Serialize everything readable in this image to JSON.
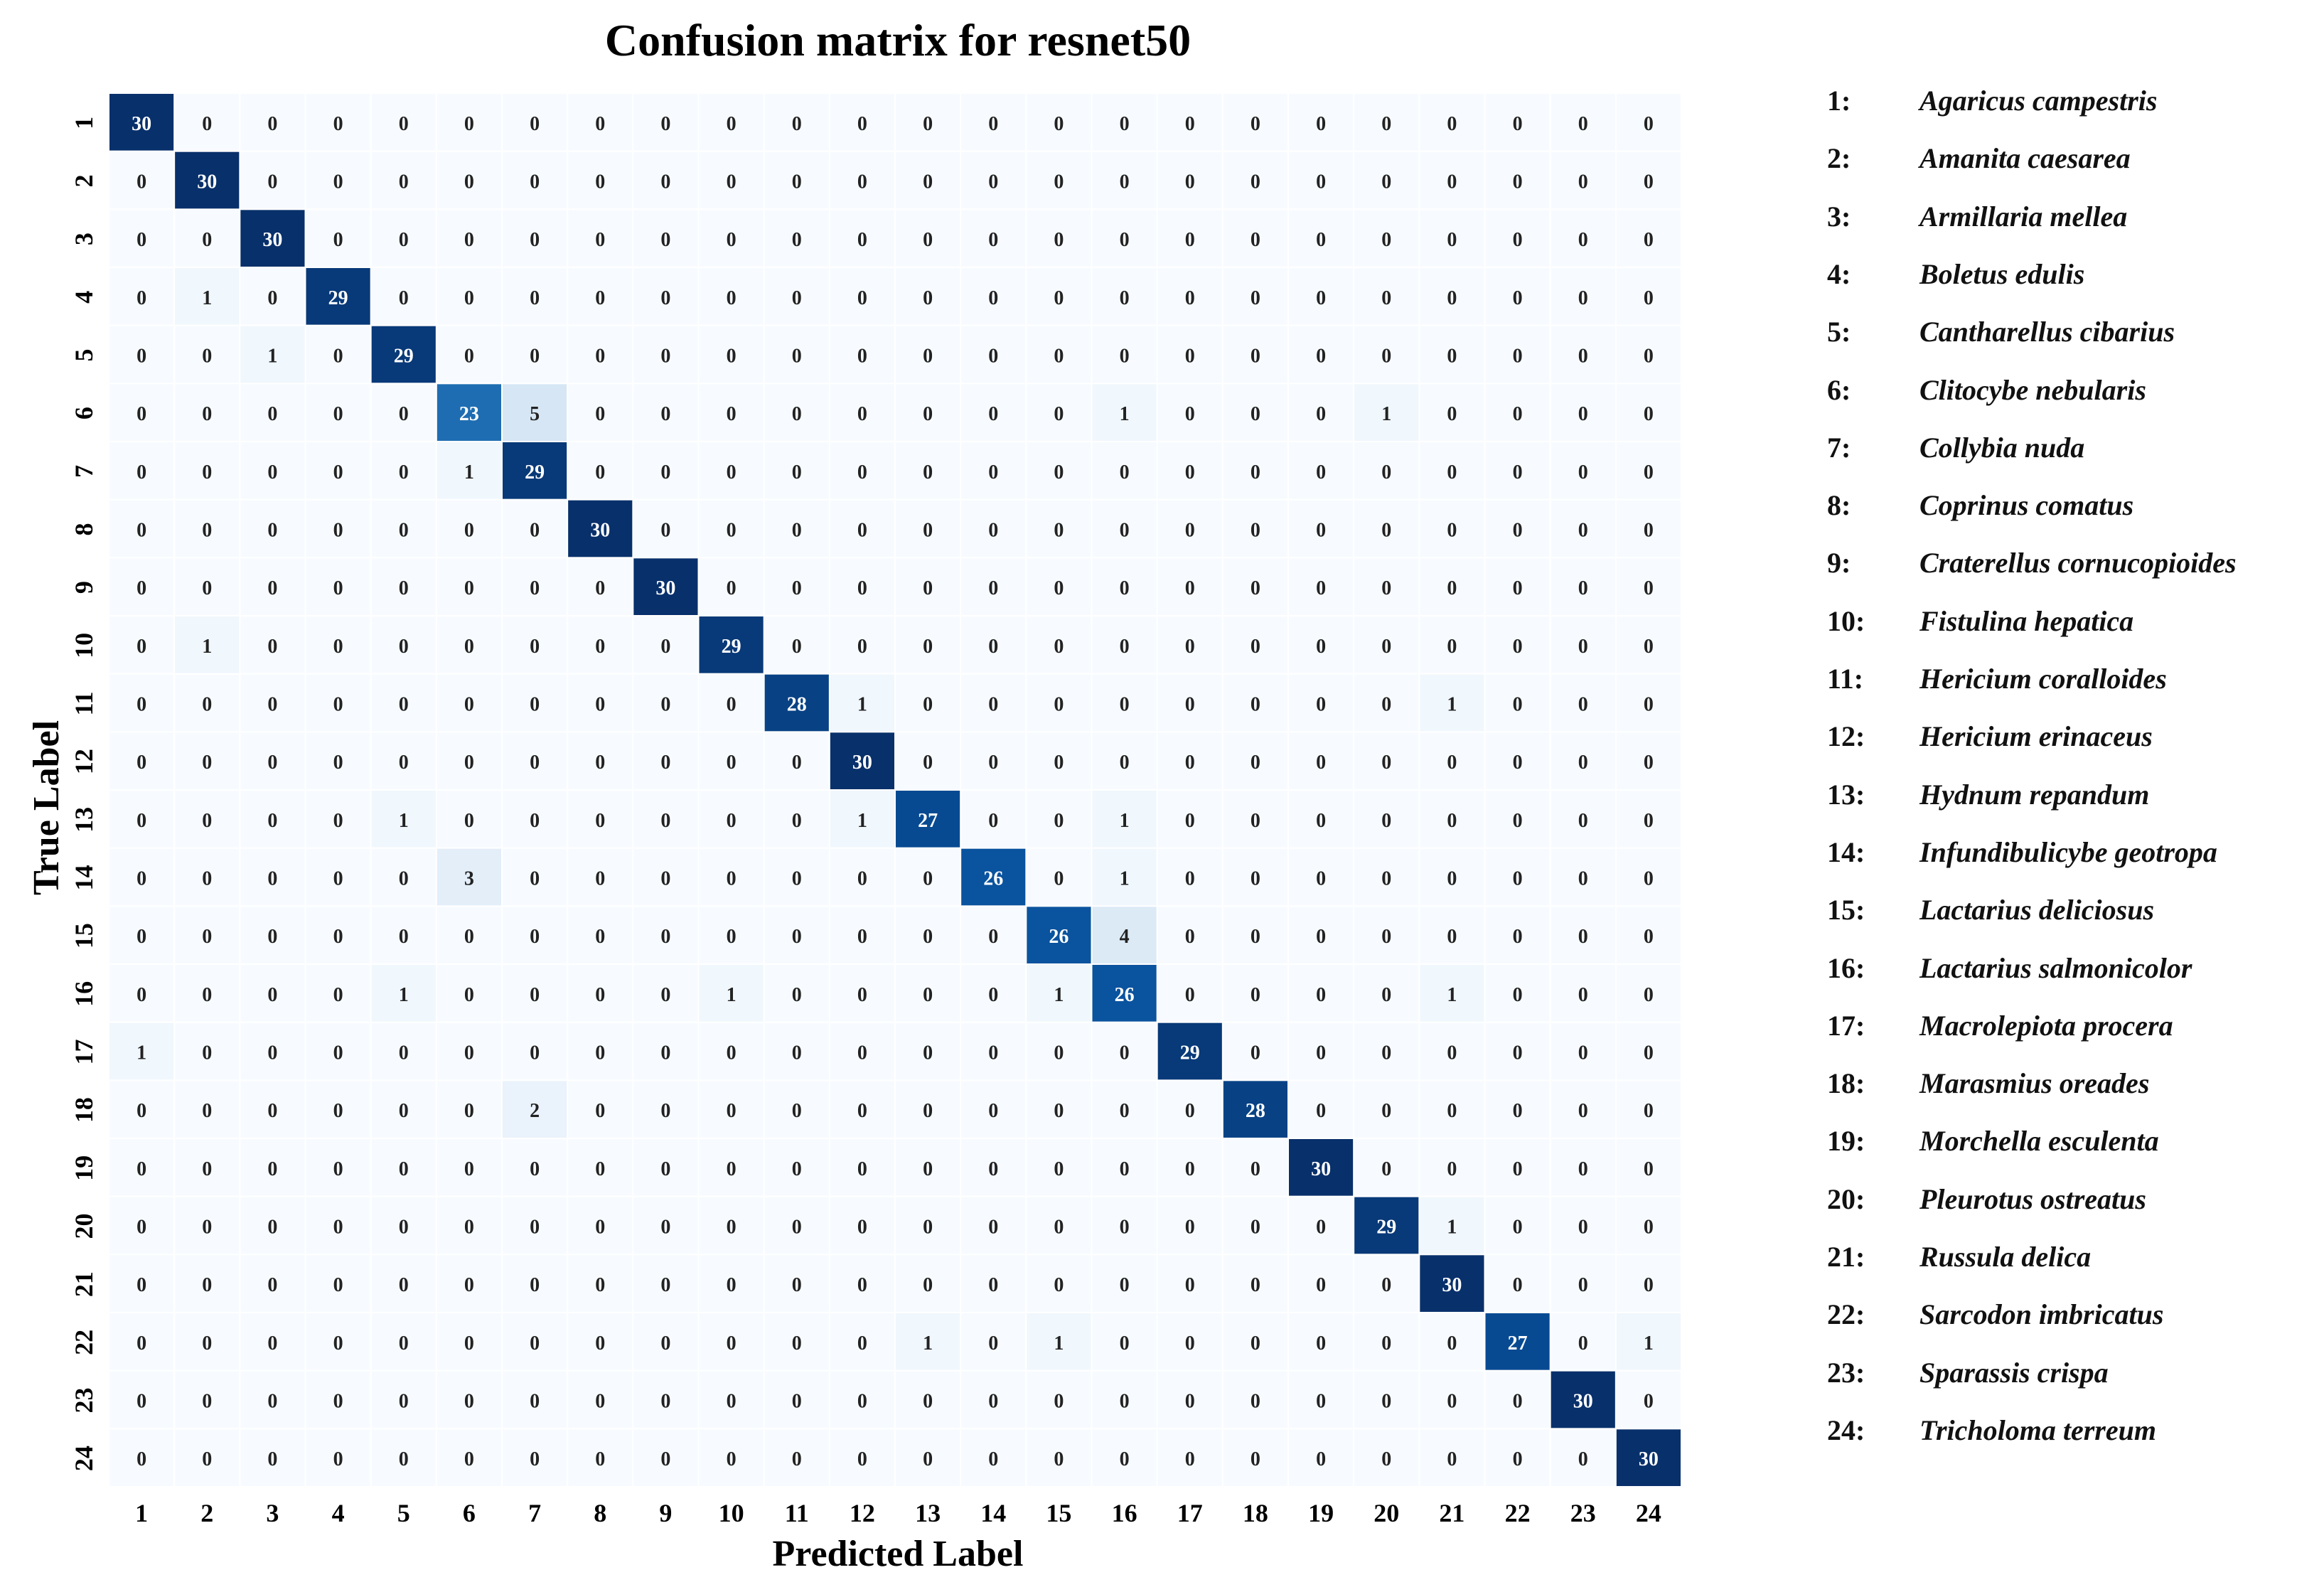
{
  "chart_data": {
    "type": "heatmap",
    "title": "Confusion matrix for resnet50",
    "xlabel": "Predicted Label",
    "ylabel": "True Label",
    "x_ticks": [
      "1",
      "2",
      "3",
      "4",
      "5",
      "6",
      "7",
      "8",
      "9",
      "10",
      "11",
      "12",
      "13",
      "14",
      "15",
      "16",
      "17",
      "18",
      "19",
      "20",
      "21",
      "22",
      "23",
      "24"
    ],
    "y_ticks": [
      "1",
      "2",
      "3",
      "4",
      "5",
      "6",
      "7",
      "8",
      "9",
      "10",
      "11",
      "12",
      "13",
      "14",
      "15",
      "16",
      "17",
      "18",
      "19",
      "20",
      "21",
      "22",
      "23",
      "24"
    ],
    "value_range": [
      0,
      30
    ],
    "colormap": "Blues",
    "values": [
      [
        30,
        0,
        0,
        0,
        0,
        0,
        0,
        0,
        0,
        0,
        0,
        0,
        0,
        0,
        0,
        0,
        0,
        0,
        0,
        0,
        0,
        0,
        0,
        0
      ],
      [
        0,
        30,
        0,
        0,
        0,
        0,
        0,
        0,
        0,
        0,
        0,
        0,
        0,
        0,
        0,
        0,
        0,
        0,
        0,
        0,
        0,
        0,
        0,
        0
      ],
      [
        0,
        0,
        30,
        0,
        0,
        0,
        0,
        0,
        0,
        0,
        0,
        0,
        0,
        0,
        0,
        0,
        0,
        0,
        0,
        0,
        0,
        0,
        0,
        0
      ],
      [
        0,
        1,
        0,
        29,
        0,
        0,
        0,
        0,
        0,
        0,
        0,
        0,
        0,
        0,
        0,
        0,
        0,
        0,
        0,
        0,
        0,
        0,
        0,
        0
      ],
      [
        0,
        0,
        1,
        0,
        29,
        0,
        0,
        0,
        0,
        0,
        0,
        0,
        0,
        0,
        0,
        0,
        0,
        0,
        0,
        0,
        0,
        0,
        0,
        0
      ],
      [
        0,
        0,
        0,
        0,
        0,
        23,
        5,
        0,
        0,
        0,
        0,
        0,
        0,
        0,
        0,
        1,
        0,
        0,
        0,
        1,
        0,
        0,
        0,
        0
      ],
      [
        0,
        0,
        0,
        0,
        0,
        1,
        29,
        0,
        0,
        0,
        0,
        0,
        0,
        0,
        0,
        0,
        0,
        0,
        0,
        0,
        0,
        0,
        0,
        0
      ],
      [
        0,
        0,
        0,
        0,
        0,
        0,
        0,
        30,
        0,
        0,
        0,
        0,
        0,
        0,
        0,
        0,
        0,
        0,
        0,
        0,
        0,
        0,
        0,
        0
      ],
      [
        0,
        0,
        0,
        0,
        0,
        0,
        0,
        0,
        30,
        0,
        0,
        0,
        0,
        0,
        0,
        0,
        0,
        0,
        0,
        0,
        0,
        0,
        0,
        0
      ],
      [
        0,
        1,
        0,
        0,
        0,
        0,
        0,
        0,
        0,
        29,
        0,
        0,
        0,
        0,
        0,
        0,
        0,
        0,
        0,
        0,
        0,
        0,
        0,
        0
      ],
      [
        0,
        0,
        0,
        0,
        0,
        0,
        0,
        0,
        0,
        0,
        28,
        1,
        0,
        0,
        0,
        0,
        0,
        0,
        0,
        0,
        1,
        0,
        0,
        0
      ],
      [
        0,
        0,
        0,
        0,
        0,
        0,
        0,
        0,
        0,
        0,
        0,
        30,
        0,
        0,
        0,
        0,
        0,
        0,
        0,
        0,
        0,
        0,
        0,
        0
      ],
      [
        0,
        0,
        0,
        0,
        1,
        0,
        0,
        0,
        0,
        0,
        0,
        1,
        27,
        0,
        0,
        1,
        0,
        0,
        0,
        0,
        0,
        0,
        0,
        0
      ],
      [
        0,
        0,
        0,
        0,
        0,
        3,
        0,
        0,
        0,
        0,
        0,
        0,
        0,
        26,
        0,
        1,
        0,
        0,
        0,
        0,
        0,
        0,
        0,
        0
      ],
      [
        0,
        0,
        0,
        0,
        0,
        0,
        0,
        0,
        0,
        0,
        0,
        0,
        0,
        0,
        26,
        4,
        0,
        0,
        0,
        0,
        0,
        0,
        0,
        0
      ],
      [
        0,
        0,
        0,
        0,
        1,
        0,
        0,
        0,
        0,
        1,
        0,
        0,
        0,
        0,
        1,
        26,
        0,
        0,
        0,
        0,
        1,
        0,
        0,
        0
      ],
      [
        1,
        0,
        0,
        0,
        0,
        0,
        0,
        0,
        0,
        0,
        0,
        0,
        0,
        0,
        0,
        0,
        29,
        0,
        0,
        0,
        0,
        0,
        0,
        0
      ],
      [
        0,
        0,
        0,
        0,
        0,
        0,
        2,
        0,
        0,
        0,
        0,
        0,
        0,
        0,
        0,
        0,
        0,
        28,
        0,
        0,
        0,
        0,
        0,
        0
      ],
      [
        0,
        0,
        0,
        0,
        0,
        0,
        0,
        0,
        0,
        0,
        0,
        0,
        0,
        0,
        0,
        0,
        0,
        0,
        30,
        0,
        0,
        0,
        0,
        0
      ],
      [
        0,
        0,
        0,
        0,
        0,
        0,
        0,
        0,
        0,
        0,
        0,
        0,
        0,
        0,
        0,
        0,
        0,
        0,
        0,
        29,
        1,
        0,
        0,
        0
      ],
      [
        0,
        0,
        0,
        0,
        0,
        0,
        0,
        0,
        0,
        0,
        0,
        0,
        0,
        0,
        0,
        0,
        0,
        0,
        0,
        0,
        30,
        0,
        0,
        0
      ],
      [
        0,
        0,
        0,
        0,
        0,
        0,
        0,
        0,
        0,
        0,
        0,
        0,
        1,
        0,
        1,
        0,
        0,
        0,
        0,
        0,
        0,
        27,
        0,
        1
      ],
      [
        0,
        0,
        0,
        0,
        0,
        0,
        0,
        0,
        0,
        0,
        0,
        0,
        0,
        0,
        0,
        0,
        0,
        0,
        0,
        0,
        0,
        0,
        30,
        0
      ],
      [
        0,
        0,
        0,
        0,
        0,
        0,
        0,
        0,
        0,
        0,
        0,
        0,
        0,
        0,
        0,
        0,
        0,
        0,
        0,
        0,
        0,
        0,
        0,
        30
      ]
    ],
    "legend": [
      {
        "num": "1:",
        "name": "Agaricus campestris"
      },
      {
        "num": "2:",
        "name": "Amanita caesarea"
      },
      {
        "num": "3:",
        "name": "Armillaria mellea"
      },
      {
        "num": "4:",
        "name": "Boletus edulis"
      },
      {
        "num": "5:",
        "name": "Cantharellus cibarius"
      },
      {
        "num": "6:",
        "name": "Clitocybe nebularis"
      },
      {
        "num": "7:",
        "name": "Collybia nuda"
      },
      {
        "num": "8:",
        "name": "Coprinus comatus"
      },
      {
        "num": "9:",
        "name": "Craterellus cornucopioides"
      },
      {
        "num": "10:",
        "name": "Fistulina hepatica"
      },
      {
        "num": "11:",
        "name": "Hericium coralloides"
      },
      {
        "num": "12:",
        "name": "Hericium erinaceus"
      },
      {
        "num": "13:",
        "name": "Hydnum repandum"
      },
      {
        "num": "14:",
        "name": "Infundibulicybe geotropa"
      },
      {
        "num": "15:",
        "name": "Lactarius deliciosus"
      },
      {
        "num": "16:",
        "name": "Lactarius salmonicolor"
      },
      {
        "num": "17:",
        "name": "Macrolepiota procera"
      },
      {
        "num": "18:",
        "name": "Marasmius oreades"
      },
      {
        "num": "19:",
        "name": "Morchella esculenta"
      },
      {
        "num": "20:",
        "name": "Pleurotus ostreatus"
      },
      {
        "num": "21:",
        "name": "Russula delica"
      },
      {
        "num": "22:",
        "name": "Sarcodon imbricatus"
      },
      {
        "num": "23:",
        "name": "Sparassis crispa"
      },
      {
        "num": "24:",
        "name": "Tricholoma terreum"
      }
    ]
  }
}
